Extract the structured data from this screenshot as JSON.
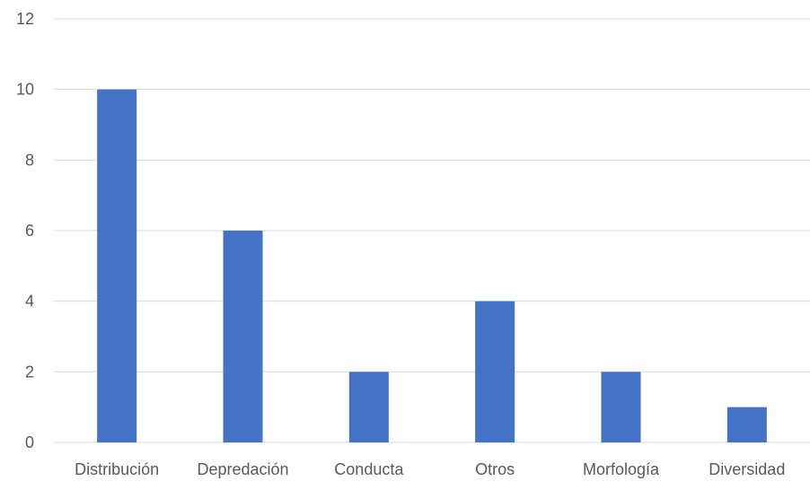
{
  "chart_data": {
    "type": "bar",
    "categories": [
      "Distribución",
      "Depredación",
      "Conducta",
      "Otros",
      "Morfología",
      "Diversidad"
    ],
    "values": [
      10,
      6,
      2,
      4,
      2,
      1
    ],
    "ylim": [
      0,
      12
    ],
    "yticks": [
      0,
      2,
      4,
      6,
      8,
      10,
      12
    ],
    "grid": true,
    "legend": "none",
    "colors": {
      "bar": "#4472C4",
      "grid": "#D9D9D9",
      "text": "#595959"
    }
  }
}
